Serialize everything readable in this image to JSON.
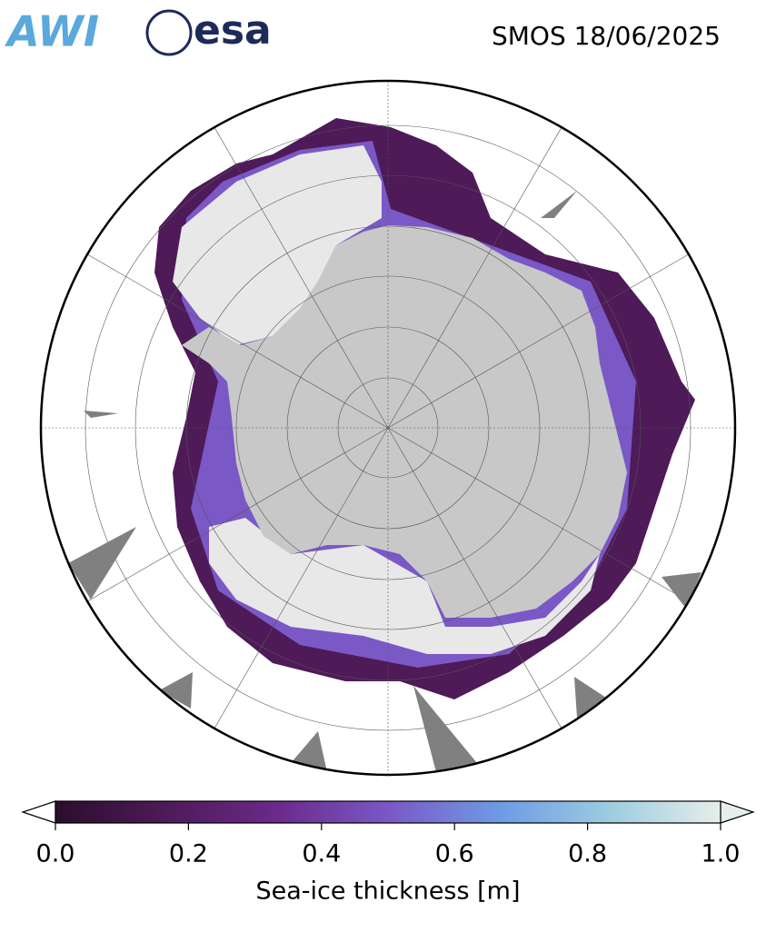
{
  "header": {
    "logos": [
      "AWI",
      "esa"
    ],
    "title": "SMOS 18/06/2025"
  },
  "colorbar": {
    "label": "Sea-ice thickness [m]",
    "lim": [
      0,
      1
    ],
    "ticks": [
      {
        "value": 0,
        "label": "0.0"
      },
      0.2,
      0.4,
      0.6,
      0.8,
      {
        "value": 1,
        "label": "1.0"
      }
    ],
    "colors": [
      "#2a0e2c",
      "#4e1a58",
      "#6a2a8a",
      "#7a58c6",
      "#6e9ae4",
      "#9ccce0",
      "#e6eeea"
    ]
  }
}
